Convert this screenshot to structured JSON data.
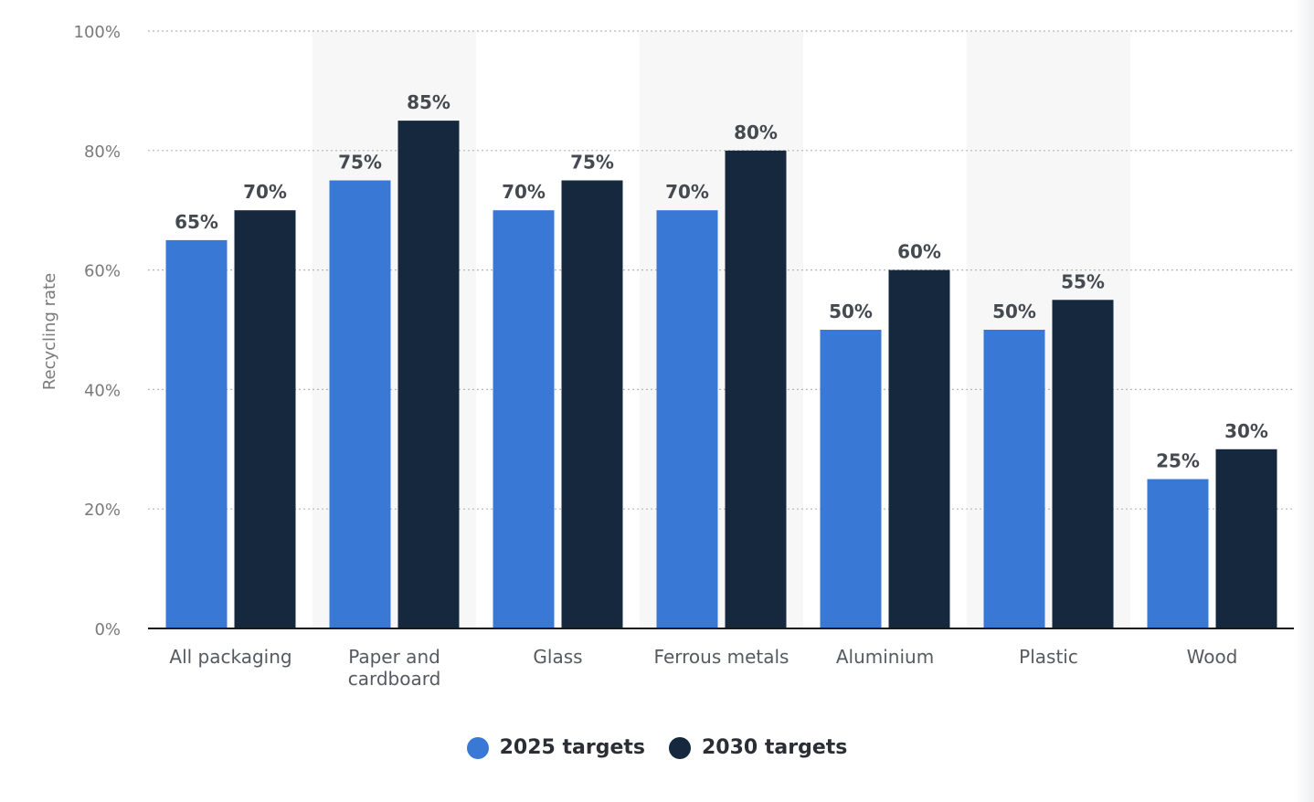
{
  "chart_data": {
    "type": "bar",
    "categories": [
      "All packaging",
      "Paper and cardboard",
      "Glass",
      "Ferrous metals",
      "Aluminium",
      "Plastic",
      "Wood"
    ],
    "category_lines": [
      [
        "All packaging"
      ],
      [
        "Paper and",
        "cardboard"
      ],
      [
        "Glass"
      ],
      [
        "Ferrous metals"
      ],
      [
        "Aluminium"
      ],
      [
        "Plastic"
      ],
      [
        "Wood"
      ]
    ],
    "series": [
      {
        "name": "2025 targets",
        "values": [
          65,
          75,
          70,
          70,
          50,
          50,
          25
        ],
        "color": "#3a78d6"
      },
      {
        "name": "2030 targets",
        "values": [
          70,
          85,
          75,
          80,
          60,
          55,
          30
        ],
        "color": "#15283d"
      }
    ],
    "data_labels": [
      [
        "65%",
        "75%",
        "70%",
        "70%",
        "50%",
        "50%",
        "25%"
      ],
      [
        "70%",
        "85%",
        "75%",
        "80%",
        "60%",
        "55%",
        "30%"
      ]
    ],
    "ylabel": "Recycling rate",
    "xlabel": "",
    "ylim": [
      0,
      100
    ],
    "yticks": [
      0,
      20,
      40,
      60,
      80,
      100
    ],
    "ytick_labels": [
      "0%",
      "20%",
      "40%",
      "60%",
      "80%",
      "100%"
    ],
    "grid": true,
    "legend_position": "bottom-center"
  },
  "legend": {
    "items": [
      {
        "label": "2025 targets",
        "color": "#3a78d6"
      },
      {
        "label": "2030 targets",
        "color": "#15283d"
      }
    ]
  }
}
